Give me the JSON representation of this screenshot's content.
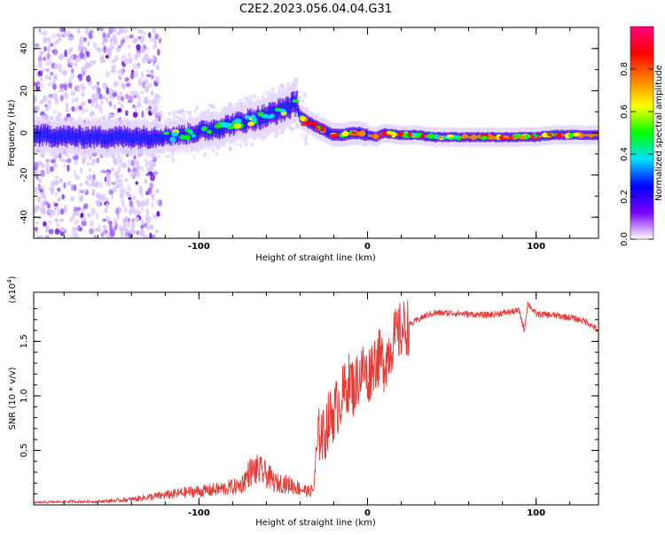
{
  "page_title": "C2E2.2023.056.04.04.G31",
  "chart_data": [
    {
      "type": "heatmap",
      "title": "C2E2.2023.056.04.04.G31",
      "xlabel": "Height of straight line (km)",
      "ylabel": "Frequency (Hz)",
      "xlim": [
        -198,
        137
      ],
      "ylim": [
        -50,
        50
      ],
      "xticks": [
        "-100",
        "0",
        "100"
      ],
      "xtick_values": [
        -100,
        0,
        100
      ],
      "yticks": [
        "-40",
        "-20",
        "0",
        "20",
        "40"
      ],
      "ytick_values": [
        -40,
        -20,
        0,
        20,
        40
      ],
      "ridge": {
        "x": [
          -198,
          -170,
          -150,
          -130,
          -110,
          -90,
          -75,
          -60,
          -50,
          -45,
          -42,
          -40,
          -35,
          -30,
          -25,
          -20,
          -15,
          -10,
          -5,
          0,
          5,
          10,
          20,
          30,
          40,
          60,
          80,
          100,
          110,
          137
        ],
        "freq": [
          -1,
          -2,
          -2,
          -2,
          -1,
          2,
          5,
          8,
          11,
          13,
          14,
          8,
          5,
          3,
          1,
          -1,
          -1,
          0,
          0,
          -1,
          -2,
          0,
          -1,
          -1,
          -2,
          -2,
          -2,
          -2,
          -1,
          -1
        ]
      },
      "colorbar": {
        "label": "Normalized spectral amplitude",
        "range": [
          0.0,
          1.0
        ],
        "ticks": [
          "0.0",
          "0.2",
          "0.4",
          "0.6",
          "0.8"
        ],
        "tick_values": [
          0.0,
          0.2,
          0.4,
          0.6,
          0.8
        ],
        "colors": [
          "#ffffff",
          "#7b00ff",
          "#0000ff",
          "#00e0ff",
          "#00ff00",
          "#ffff00",
          "#ff8000",
          "#ff0000",
          "#ff0080"
        ]
      }
    },
    {
      "type": "line",
      "xlabel": "Height of straight line (km)",
      "ylabel": "SNR (10 * v/v)",
      "y_multiplier_label": "(x10",
      "y_multiplier_exp": "4",
      "y_multiplier_close": ")",
      "xlim": [
        -198,
        137
      ],
      "ylim": [
        0,
        1.95
      ],
      "xticks": [
        "-100",
        "0",
        "100"
      ],
      "xtick_values": [
        -100,
        0,
        100
      ],
      "yticks": [
        "0.5",
        "1.0",
        "1.5"
      ],
      "ytick_values": [
        0.5,
        1.0,
        1.5
      ],
      "line_color": "#e53935",
      "series": [
        {
          "name": "SNR",
          "x": [
            -198,
            -180,
            -160,
            -140,
            -125,
            -115,
            -105,
            -95,
            -85,
            -75,
            -70,
            -66,
            -62,
            -58,
            -55,
            -50,
            -45,
            -40,
            -35,
            -32,
            -30,
            -28,
            -26,
            -24,
            -22,
            -20,
            -18,
            -15,
            -12,
            -10,
            -8,
            -5,
            -2,
            0,
            3,
            6,
            10,
            15,
            20,
            25,
            30,
            35,
            40,
            50,
            60,
            70,
            80,
            90,
            93,
            95,
            100,
            110,
            120,
            130,
            137
          ],
          "values": [
            0.02,
            0.03,
            0.03,
            0.05,
            0.08,
            0.1,
            0.12,
            0.13,
            0.15,
            0.18,
            0.3,
            0.32,
            0.3,
            0.25,
            0.2,
            0.2,
            0.18,
            0.15,
            0.12,
            0.14,
            0.5,
            0.7,
            0.6,
            0.75,
            0.8,
            0.85,
            0.9,
            1.0,
            1.1,
            1.15,
            1.05,
            1.2,
            1.25,
            1.15,
            1.3,
            1.35,
            1.3,
            1.5,
            1.6,
            1.65,
            1.7,
            1.74,
            1.76,
            1.76,
            1.75,
            1.74,
            1.76,
            1.78,
            1.6,
            1.85,
            1.75,
            1.74,
            1.72,
            1.68,
            1.6
          ]
        }
      ]
    }
  ]
}
